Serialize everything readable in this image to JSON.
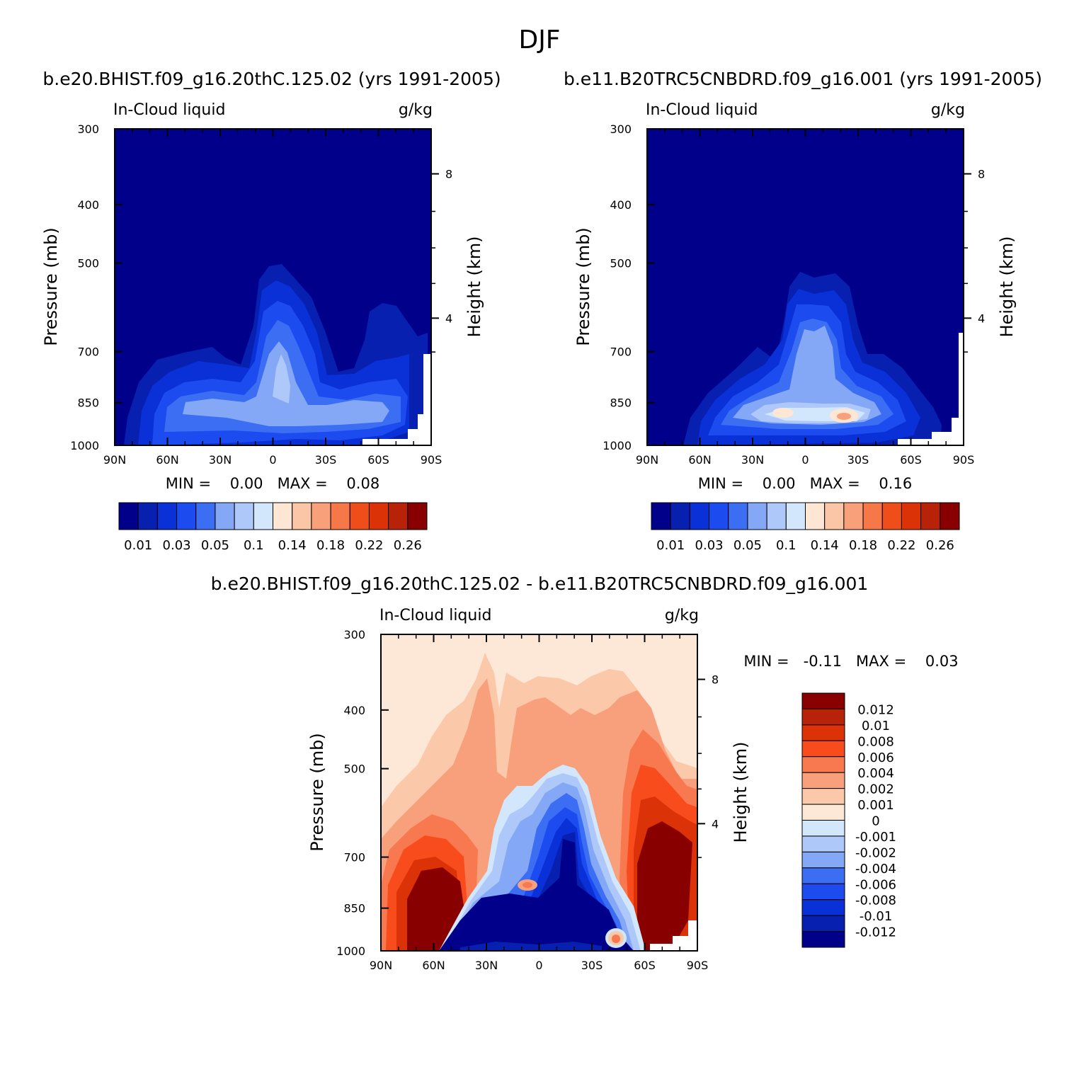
{
  "season": "DJF",
  "chart_data": [
    {
      "type": "heatmap",
      "panel": "case",
      "title": "b.e20.BHIST.f09_g16.20thC.125.02 (yrs 1991-2005)",
      "variable": "In-Cloud liquid",
      "units": "g/kg",
      "ylabel": "Pressure (mb)",
      "y2label": "Height (km)",
      "x_ticks": [
        "90N",
        "60N",
        "30N",
        "0",
        "30S",
        "60S",
        "90S"
      ],
      "y_ticks": [
        "300",
        "400",
        "500",
        "700",
        "850",
        "1000"
      ],
      "y2_ticks": [
        "8",
        "4"
      ],
      "xlim": [
        90,
        -90
      ],
      "ylim": [
        1000,
        300
      ],
      "stats": "MIN =    0.00   MAX =    0.08",
      "min": 0.0,
      "max": 0.08,
      "colorbar": {
        "labels": [
          "0.01",
          "0.03",
          "0.05",
          "0.1",
          "0.14",
          "0.18",
          "0.22",
          "0.26"
        ],
        "levels": [
          0.01,
          0.02,
          0.03,
          0.04,
          0.05,
          0.07,
          0.1,
          0.12,
          0.14,
          0.16,
          0.18,
          0.2,
          0.22,
          0.24,
          0.26
        ],
        "colors": [
          "#00008b",
          "#0820b0",
          "#0a30d8",
          "#1c4cf0",
          "#3c6ef4",
          "#84a8f6",
          "#afc8fa",
          "#d2e6fc",
          "#fde6d4",
          "#fbc6a6",
          "#f8a07a",
          "#f67848",
          "#ef4e1a",
          "#dc3208",
          "#b82208",
          "#880000"
        ]
      },
      "features": [
        {
          "lat": 3,
          "p": 640,
          "value": 0.07
        },
        {
          "lat": -35,
          "p": 850,
          "value": 0.06
        },
        {
          "lat": 45,
          "p": 850,
          "value": 0.05
        },
        {
          "lat": -60,
          "p": 550,
          "value": 0.02
        }
      ]
    },
    {
      "type": "heatmap",
      "panel": "control",
      "title": "b.e11.B20TRC5CNBDRD.f09_g16.001 (yrs 1991-2005)",
      "variable": "In-Cloud liquid",
      "units": "g/kg",
      "ylabel": "Pressure (mb)",
      "y2label": "Height (km)",
      "x_ticks": [
        "90N",
        "60N",
        "30N",
        "0",
        "30S",
        "60S",
        "90S"
      ],
      "y_ticks": [
        "300",
        "400",
        "500",
        "700",
        "850",
        "1000"
      ],
      "y2_ticks": [
        "8",
        "4"
      ],
      "xlim": [
        90,
        -90
      ],
      "ylim": [
        1000,
        300
      ],
      "stats": "MIN =    0.00   MAX =    0.16",
      "min": 0.0,
      "max": 0.16,
      "colorbar": {
        "labels": [
          "0.01",
          "0.03",
          "0.05",
          "0.1",
          "0.14",
          "0.18",
          "0.22",
          "0.26"
        ],
        "levels": [
          0.01,
          0.02,
          0.03,
          0.04,
          0.05,
          0.07,
          0.1,
          0.12,
          0.14,
          0.16,
          0.18,
          0.2,
          0.22,
          0.24,
          0.26
        ],
        "colors": [
          "#00008b",
          "#0820b0",
          "#0a30d8",
          "#1c4cf0",
          "#3c6ef4",
          "#84a8f6",
          "#afc8fa",
          "#d2e6fc",
          "#fde6d4",
          "#fbc6a6",
          "#f8a07a",
          "#f67848",
          "#ef4e1a",
          "#dc3208",
          "#b82208",
          "#880000"
        ]
      },
      "features": [
        {
          "lat": -20,
          "p": 920,
          "value": 0.16
        },
        {
          "lat": 15,
          "p": 910,
          "value": 0.14
        },
        {
          "lat": -5,
          "p": 640,
          "value": 0.07
        }
      ]
    },
    {
      "type": "heatmap",
      "panel": "difference",
      "title": "b.e20.BHIST.f09_g16.20thC.125.02 - b.e11.B20TRC5CNBDRD.f09_g16.001",
      "variable": "In-Cloud liquid",
      "units": "g/kg",
      "ylabel": "Pressure (mb)",
      "y2label": "Height (km)",
      "x_ticks": [
        "90N",
        "60N",
        "30N",
        "0",
        "30S",
        "60S",
        "90S"
      ],
      "y_ticks": [
        "300",
        "400",
        "500",
        "700",
        "850",
        "1000"
      ],
      "y2_ticks": [
        "8",
        "4"
      ],
      "xlim": [
        90,
        -90
      ],
      "ylim": [
        1000,
        300
      ],
      "stats": "MIN =   -0.11   MAX =    0.03",
      "min": -0.11,
      "max": 0.03,
      "colorbar": {
        "labels": [
          "0.012",
          "0.01",
          "0.008",
          "0.006",
          "0.004",
          "0.002",
          "0.001",
          "0",
          "-0.001",
          "-0.002",
          "-0.004",
          "-0.006",
          "-0.008",
          "-0.01",
          "-0.012"
        ],
        "levels": [
          0.012,
          0.01,
          0.008,
          0.006,
          0.004,
          0.002,
          0.001,
          0,
          -0.001,
          -0.002,
          -0.004,
          -0.006,
          -0.008,
          -0.01,
          -0.012
        ],
        "colors": [
          "#880000",
          "#b82208",
          "#dc3208",
          "#f84c1c",
          "#f87850",
          "#f8a07c",
          "#fbc8aa",
          "#fde8d8",
          "#d2e6fc",
          "#afc8fa",
          "#84a8f6",
          "#3c6ef4",
          "#1c4cf0",
          "#0a30d8",
          "#0820b0",
          "#00008b"
        ]
      },
      "features": [
        {
          "lat": -70,
          "p": 780,
          "value": 0.03
        },
        {
          "lat": 70,
          "p": 850,
          "value": 0.02
        },
        {
          "lat": 0,
          "p": 920,
          "value": -0.11
        },
        {
          "lat": -15,
          "p": 650,
          "value": -0.05
        },
        {
          "lat": -45,
          "p": 960,
          "value": 0.003
        }
      ]
    }
  ]
}
